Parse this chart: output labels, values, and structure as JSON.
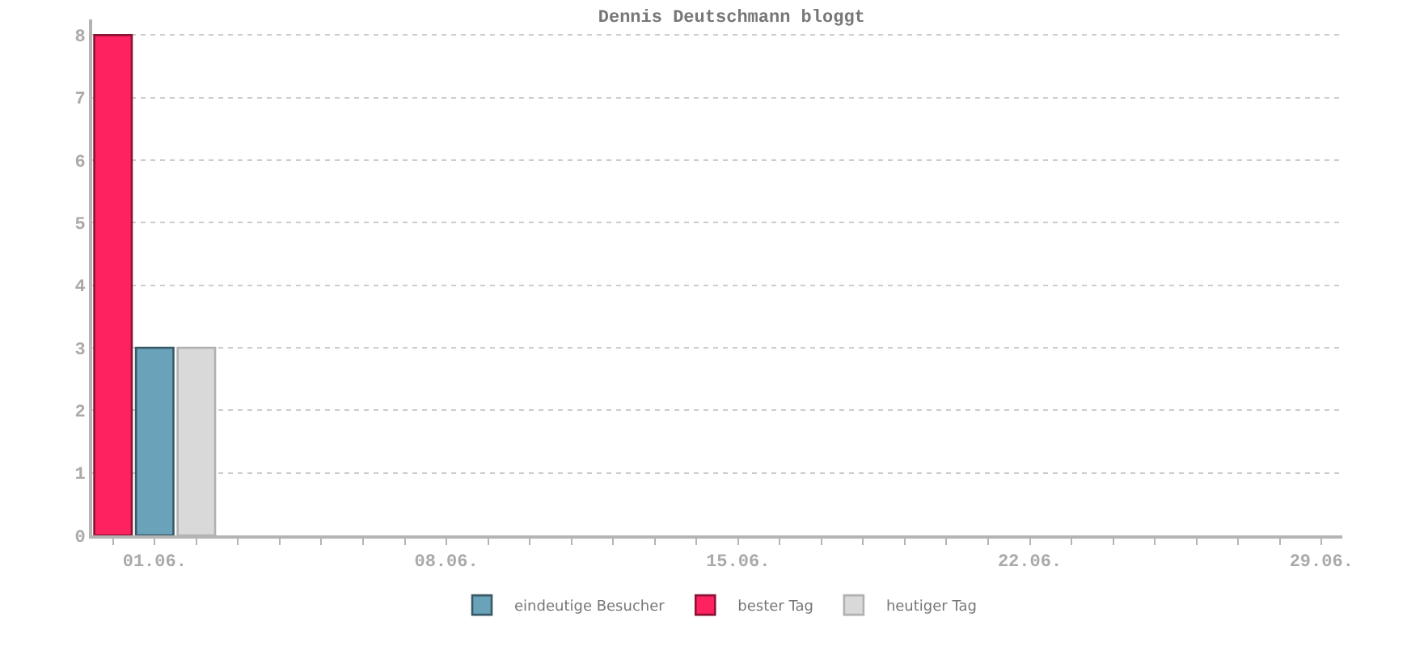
{
  "chart_data": {
    "type": "bar",
    "title": "Dennis Deutschmann bloggt",
    "categories": [
      null,
      "01.06.",
      null,
      null,
      null,
      null,
      null,
      null,
      "08.06.",
      null,
      null,
      null,
      null,
      null,
      null,
      "15.06.",
      null,
      null,
      null,
      null,
      null,
      null,
      "22.06.",
      null,
      null,
      null,
      null,
      null,
      null,
      "29.06."
    ],
    "series": [
      {
        "name": "eindeutige Besucher",
        "color": "#6aa2ba",
        "values": [
          null,
          3,
          null,
          null,
          null,
          null,
          null,
          null,
          null,
          null,
          null,
          null,
          null,
          null,
          null,
          null,
          null,
          null,
          null,
          null,
          null,
          null,
          null,
          null,
          null,
          null,
          null,
          null,
          null,
          null
        ]
      },
      {
        "name": "bester Tag",
        "color": "#ff2260",
        "values": [
          8,
          null,
          null,
          null,
          null,
          null,
          null,
          null,
          null,
          null,
          null,
          null,
          null,
          null,
          null,
          null,
          null,
          null,
          null,
          null,
          null,
          null,
          null,
          null,
          null,
          null,
          null,
          null,
          null,
          null
        ]
      },
      {
        "name": "heutiger Tag",
        "color": "#d9d9d9",
        "values": [
          null,
          null,
          3,
          null,
          null,
          null,
          null,
          null,
          null,
          null,
          null,
          null,
          null,
          null,
          null,
          null,
          null,
          null,
          null,
          null,
          null,
          null,
          null,
          null,
          null,
          null,
          null,
          null,
          null,
          null
        ]
      }
    ],
    "ylim": [
      0,
      8.25
    ],
    "yticks": [
      0,
      1,
      2,
      3,
      4,
      5,
      6,
      7,
      8
    ],
    "grid": "y",
    "legend": "bottom"
  }
}
